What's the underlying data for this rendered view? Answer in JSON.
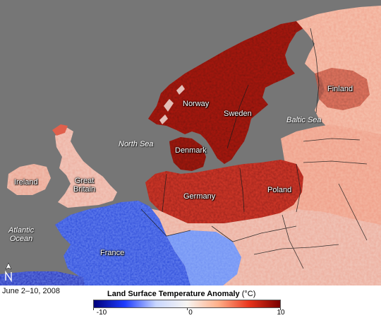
{
  "date": "June 2–10, 2008",
  "legend": {
    "title": "Land Surface Temperature Anomaly",
    "unit": "(°C)",
    "ticks": [
      "-10",
      "0",
      "10"
    ],
    "min": -10,
    "max": 10,
    "colors": [
      "#00007a",
      "#1e3cff",
      "#c8d6ff",
      "#f7f5f2",
      "#ffb08a",
      "#e8341c",
      "#7a0000"
    ]
  },
  "labels": {
    "norway": "Norway",
    "sweden": "Sweden",
    "finland": "Finland",
    "baltic_sea": "Baltic Sea",
    "north_sea": "North Sea",
    "denmark": "Denmark",
    "ireland": "Ireland",
    "great_britain_1": "Great",
    "great_britain_2": "Britain",
    "germany": "Germany",
    "poland": "Poland",
    "atlantic_1": "Atlantic",
    "atlantic_2": "Ocean",
    "france": "France"
  },
  "colors": {
    "sea": "#767676",
    "border": "#1a1a1a"
  },
  "icons": {
    "north": "north-arrow-icon"
  }
}
